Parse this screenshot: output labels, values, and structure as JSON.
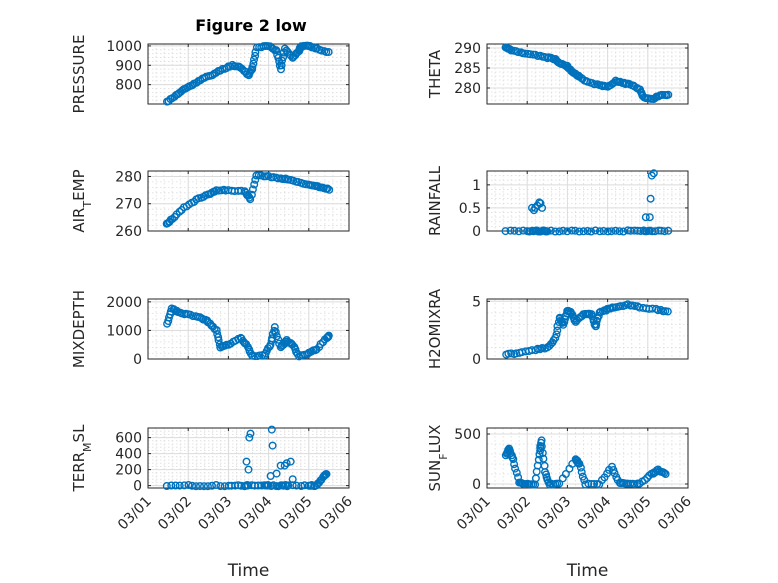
{
  "figure": {
    "title": "Figure 2 low",
    "marker_color": "#0072BD",
    "background": "#ffffff"
  },
  "x_axis": {
    "label": "Time",
    "tick_labels": [
      "03/01",
      "03/02",
      "03/03",
      "03/04",
      "03/05",
      "03/06"
    ],
    "range_days": [
      0,
      5
    ]
  },
  "chart_data": [
    {
      "type": "scatter",
      "panel": "pressure",
      "ylabel": "PRESSURE",
      "title": "Figure 2 low",
      "ylim": [
        700,
        1010
      ],
      "yticks": [
        800,
        900,
        1000
      ],
      "grid": true,
      "x_unit": "days since 03/01",
      "anchors": [
        [
          0.47,
          710
        ],
        [
          0.7,
          745
        ],
        [
          0.9,
          775
        ],
        [
          1.1,
          800
        ],
        [
          1.35,
          830
        ],
        [
          1.6,
          850
        ],
        [
          1.85,
          880
        ],
        [
          2.1,
          900
        ],
        [
          2.3,
          890
        ],
        [
          2.5,
          848
        ],
        [
          2.6,
          890
        ],
        [
          2.7,
          990
        ],
        [
          3.0,
          1000
        ],
        [
          3.2,
          975
        ],
        [
          3.3,
          880
        ],
        [
          3.4,
          985
        ],
        [
          3.6,
          940
        ],
        [
          3.75,
          975
        ],
        [
          3.8,
          1000
        ],
        [
          4.0,
          1000
        ],
        [
          4.2,
          985
        ],
        [
          4.5,
          968
        ]
      ]
    },
    {
      "type": "scatter",
      "panel": "theta",
      "ylabel": "THETA",
      "ylim": [
        276,
        291
      ],
      "yticks": [
        280,
        285,
        290
      ],
      "grid": true,
      "x_unit": "days since 03/01",
      "anchors": [
        [
          0.47,
          290.2
        ],
        [
          0.6,
          289.4
        ],
        [
          0.9,
          288.8
        ],
        [
          1.2,
          288.2
        ],
        [
          1.5,
          287.6
        ],
        [
          1.7,
          287.2
        ],
        [
          1.8,
          286.2
        ],
        [
          2.0,
          285.5
        ],
        [
          2.1,
          284.2
        ],
        [
          2.2,
          283.5
        ],
        [
          2.3,
          282.8
        ],
        [
          2.5,
          281.5
        ],
        [
          2.8,
          280.8
        ],
        [
          3.0,
          280.2
        ],
        [
          3.2,
          281.8
        ],
        [
          3.4,
          281.2
        ],
        [
          3.6,
          280.8
        ],
        [
          3.8,
          279.5
        ],
        [
          3.9,
          277.5
        ],
        [
          4.1,
          277.2
        ],
        [
          4.3,
          278.2
        ],
        [
          4.5,
          278.3
        ]
      ]
    },
    {
      "type": "scatter",
      "panel": "air_temp",
      "ylabel": "AIR_TEMP",
      "ylim": [
        260,
        282
      ],
      "yticks": [
        260,
        270,
        280
      ],
      "grid": true,
      "x_unit": "days since 03/01",
      "anchors": [
        [
          0.47,
          262.5
        ],
        [
          0.6,
          264.5
        ],
        [
          0.9,
          268.5
        ],
        [
          1.2,
          271.5
        ],
        [
          1.5,
          273.5
        ],
        [
          1.7,
          274.8
        ],
        [
          2.0,
          275.0
        ],
        [
          2.4,
          274.5
        ],
        [
          2.55,
          271.5
        ],
        [
          2.7,
          280.5
        ],
        [
          3.0,
          280.0
        ],
        [
          3.3,
          279.2
        ],
        [
          3.5,
          279.0
        ],
        [
          3.8,
          277.5
        ],
        [
          4.1,
          276.8
        ],
        [
          4.3,
          276.0
        ],
        [
          4.5,
          275.3
        ]
      ]
    },
    {
      "type": "scatter",
      "panel": "rainfall",
      "ylabel": "RAINFALL",
      "ylim": [
        0,
        1.3
      ],
      "yticks": [
        0,
        0.5,
        1
      ],
      "tick_labels": [
        "0",
        "0.5",
        "1"
      ],
      "grid": true,
      "x_unit": "days since 03/01",
      "anchors": [
        [
          0.47,
          0
        ],
        [
          1.0,
          0
        ],
        [
          1.2,
          0
        ],
        [
          1.4,
          0
        ],
        [
          1.5,
          0
        ],
        [
          2.0,
          0
        ],
        [
          2.5,
          0
        ],
        [
          3.0,
          0
        ],
        [
          3.5,
          0
        ],
        [
          3.9,
          0
        ],
        [
          4.1,
          0
        ],
        [
          4.5,
          0
        ]
      ],
      "extra_points": [
        [
          1.12,
          0.5
        ],
        [
          1.17,
          0.45
        ],
        [
          1.2,
          0.5
        ],
        [
          1.25,
          0.55
        ],
        [
          1.3,
          0.62
        ],
        [
          1.33,
          0.6
        ],
        [
          1.37,
          0.5
        ],
        [
          3.95,
          0.3
        ],
        [
          4.05,
          0.3
        ],
        [
          4.07,
          0.7
        ],
        [
          4.1,
          1.2
        ],
        [
          4.15,
          1.25
        ]
      ]
    },
    {
      "type": "scatter",
      "panel": "mixdepth",
      "ylabel": "MIXDEPTH",
      "ylim": [
        0,
        2100
      ],
      "yticks": [
        0,
        1000,
        2000
      ],
      "grid": true,
      "x_unit": "days since 03/01",
      "anchors": [
        [
          0.47,
          1250
        ],
        [
          0.6,
          1750
        ],
        [
          0.75,
          1650
        ],
        [
          1.0,
          1550
        ],
        [
          1.3,
          1450
        ],
        [
          1.5,
          1300
        ],
        [
          1.7,
          1000
        ],
        [
          1.8,
          400
        ],
        [
          2.0,
          500
        ],
        [
          2.3,
          750
        ],
        [
          2.45,
          500
        ],
        [
          2.6,
          100
        ],
        [
          2.9,
          150
        ],
        [
          3.05,
          500
        ],
        [
          3.15,
          1100
        ],
        [
          3.3,
          400
        ],
        [
          3.45,
          650
        ],
        [
          3.6,
          500
        ],
        [
          3.75,
          100
        ],
        [
          4.0,
          200
        ],
        [
          4.2,
          350
        ],
        [
          4.45,
          750
        ],
        [
          4.5,
          800
        ]
      ]
    },
    {
      "type": "scatter",
      "panel": "h2omixra",
      "ylabel": "H2OMIXRA",
      "ylim": [
        0,
        5.2
      ],
      "yticks": [
        0,
        5
      ],
      "grid": true,
      "x_unit": "days since 03/01",
      "anchors": [
        [
          0.47,
          0.4
        ],
        [
          0.8,
          0.5
        ],
        [
          1.2,
          0.8
        ],
        [
          1.5,
          1.0
        ],
        [
          1.7,
          1.8
        ],
        [
          1.8,
          3.6
        ],
        [
          1.9,
          3.0
        ],
        [
          2.0,
          4.2
        ],
        [
          2.1,
          4.0
        ],
        [
          2.2,
          3.2
        ],
        [
          2.4,
          3.9
        ],
        [
          2.6,
          3.9
        ],
        [
          2.7,
          2.8
        ],
        [
          2.8,
          4.0
        ],
        [
          3.0,
          4.3
        ],
        [
          3.2,
          4.5
        ],
        [
          3.5,
          4.7
        ],
        [
          3.8,
          4.5
        ],
        [
          4.2,
          4.3
        ],
        [
          4.5,
          4.1
        ]
      ]
    },
    {
      "type": "scatter",
      "panel": "terr_msl",
      "ylabel": "TERR_MSL",
      "ylim": [
        -30,
        720
      ],
      "yticks": [
        0,
        200,
        400,
        600
      ],
      "grid": true,
      "x_unit": "days since 03/01",
      "anchors": [
        [
          0.47,
          0
        ],
        [
          1.0,
          0
        ],
        [
          1.5,
          0
        ],
        [
          2.0,
          0
        ],
        [
          2.4,
          0
        ],
        [
          2.5,
          0
        ],
        [
          2.9,
          0
        ],
        [
          3.0,
          0
        ],
        [
          3.3,
          0
        ],
        [
          3.5,
          0
        ],
        [
          4.0,
          0
        ],
        [
          4.2,
          0
        ],
        [
          4.35,
          100
        ],
        [
          4.45,
          150
        ]
      ],
      "extra_points": [
        [
          2.45,
          300
        ],
        [
          2.5,
          200
        ],
        [
          2.52,
          600
        ],
        [
          2.55,
          650
        ],
        [
          3.05,
          120
        ],
        [
          3.08,
          700
        ],
        [
          3.1,
          500
        ],
        [
          3.2,
          150
        ],
        [
          3.3,
          250
        ],
        [
          3.4,
          250
        ],
        [
          3.45,
          280
        ],
        [
          3.55,
          300
        ],
        [
          3.6,
          80
        ]
      ]
    },
    {
      "type": "scatter",
      "panel": "sun_flux",
      "ylabel": "SUN_FLUX",
      "ylim": [
        -40,
        560
      ],
      "yticks": [
        0,
        500
      ],
      "grid": true,
      "x_unit": "days since 03/01",
      "anchors": [
        [
          0.47,
          290
        ],
        [
          0.55,
          350
        ],
        [
          0.65,
          250
        ],
        [
          0.8,
          20
        ],
        [
          0.95,
          0
        ],
        [
          1.2,
          0
        ],
        [
          1.3,
          300
        ],
        [
          1.35,
          440
        ],
        [
          1.45,
          120
        ],
        [
          1.55,
          0
        ],
        [
          1.8,
          0
        ],
        [
          2.2,
          250
        ],
        [
          2.3,
          200
        ],
        [
          2.45,
          0
        ],
        [
          2.8,
          0
        ],
        [
          3.1,
          170
        ],
        [
          3.3,
          10
        ],
        [
          3.5,
          0
        ],
        [
          3.8,
          0
        ],
        [
          4.1,
          100
        ],
        [
          4.25,
          140
        ],
        [
          4.45,
          100
        ]
      ]
    }
  ]
}
